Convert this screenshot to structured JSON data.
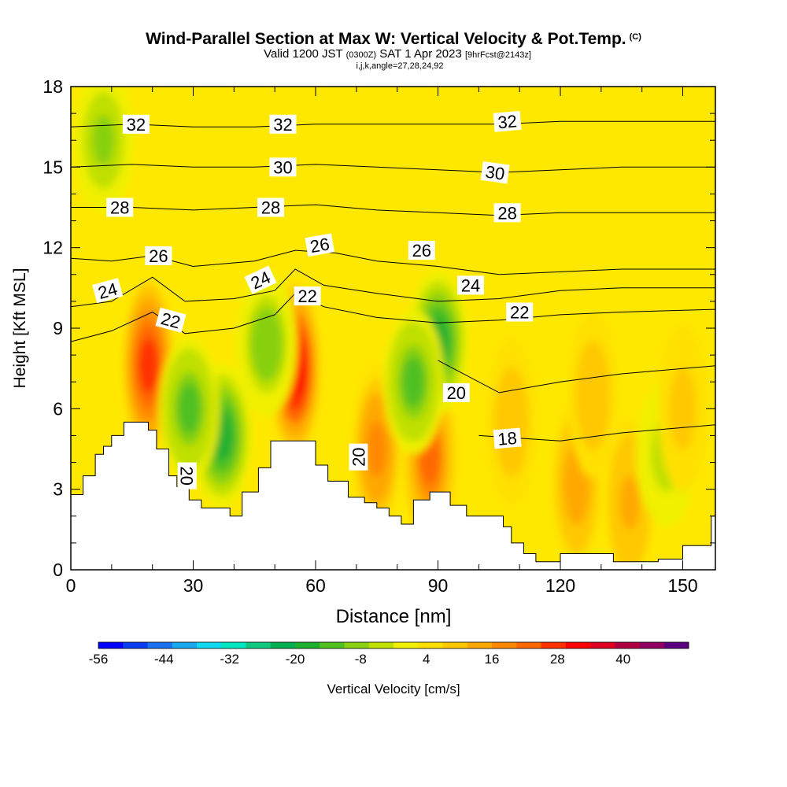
{
  "title": {
    "main": "Wind-Parallel Section at Max W: Vertical Velocity & Pot.Temp.",
    "copyright": "(C)",
    "valid_prefix": "Valid 1200 JST",
    "valid_utc": "(0300Z)",
    "valid_date": "SAT 1 Apr 2023",
    "forecast": "[9hrFcst@2143z]",
    "indices": "i,j,k,angle=27,28,24,92"
  },
  "chart_data": {
    "type": "heatmap",
    "xlabel": "Distance [nm]",
    "ylabel": "Height [Kft MSL]",
    "xlim": [
      0,
      158
    ],
    "ylim": [
      0,
      18
    ],
    "xticks": [
      0,
      30,
      60,
      90,
      120,
      150
    ],
    "yticks": [
      0,
      3,
      6,
      9,
      12,
      15,
      18
    ],
    "colorbar": {
      "label": "Vertical Velocity [cm/s]",
      "tick_labels": [
        "-56",
        "-44",
        "-32",
        "-20",
        "-8",
        "4",
        "16",
        "28",
        "40"
      ],
      "min": -56,
      "max": 52,
      "colors": [
        "#0000ff",
        "#0a3cf0",
        "#1a70f0",
        "#18a8f0",
        "#10d8f0",
        "#00e8c0",
        "#10c880",
        "#00b050",
        "#20b030",
        "#50c020",
        "#88d010",
        "#c0e000",
        "#f0f000",
        "#ffe000",
        "#ffc800",
        "#ffa800",
        "#ff8800",
        "#ff6800",
        "#ff3000",
        "#ff0000",
        "#e00020",
        "#b00040",
        "#900060",
        "#5a0080"
      ]
    },
    "terrain_profile": {
      "x": [
        0,
        3,
        3,
        6,
        6,
        8,
        8,
        10,
        10,
        13,
        13,
        19,
        19,
        21,
        21,
        24,
        24,
        26,
        26,
        29,
        29,
        32,
        32,
        39,
        39,
        42,
        42,
        46,
        46,
        49,
        49,
        60,
        60,
        63,
        63,
        68,
        68,
        72,
        72,
        75,
        75,
        78,
        78,
        81,
        81,
        84,
        84,
        88,
        88,
        93,
        93,
        97,
        97,
        106,
        106,
        108,
        108,
        111,
        111,
        114,
        114,
        120,
        120,
        133,
        133,
        144,
        144,
        150,
        150,
        157,
        157,
        158
      ],
      "height": [
        2.8,
        2.8,
        3.5,
        3.5,
        4.3,
        4.3,
        4.6,
        4.6,
        5.0,
        5.0,
        5.5,
        5.5,
        5.2,
        5.2,
        4.5,
        4.5,
        3.5,
        3.5,
        3.1,
        3.1,
        2.6,
        2.6,
        2.3,
        2.3,
        2.0,
        2.0,
        2.9,
        2.9,
        3.8,
        3.8,
        4.8,
        4.8,
        3.9,
        3.9,
        3.3,
        3.3,
        2.7,
        2.7,
        2.5,
        2.5,
        2.3,
        2.3,
        2.0,
        2.0,
        1.7,
        1.7,
        2.6,
        2.6,
        2.9,
        2.9,
        2.4,
        2.4,
        2.0,
        2.0,
        1.6,
        1.6,
        1.0,
        1.0,
        0.6,
        0.6,
        0.3,
        0.3,
        0.6,
        0.6,
        0.3,
        0.3,
        0.4,
        0.4,
        0.9,
        0.9,
        2.0,
        2.0
      ]
    },
    "velocity_features": [
      {
        "x": 19,
        "y": 7.6,
        "w": 29
      },
      {
        "x": 55,
        "y": 7.5,
        "w": 32
      },
      {
        "x": 75,
        "y": 4.5,
        "w": 18
      },
      {
        "x": 88,
        "y": 4.2,
        "w": 22
      },
      {
        "x": 124,
        "y": 3.2,
        "w": 14
      },
      {
        "x": 137,
        "y": 2.5,
        "w": 12
      },
      {
        "x": 108,
        "y": 5.5,
        "w": 10
      },
      {
        "x": 90,
        "y": 8.5,
        "w": -18
      },
      {
        "x": 84,
        "y": 7.0,
        "w": -12
      },
      {
        "x": 37,
        "y": 5.0,
        "w": -16
      },
      {
        "x": 29,
        "y": 6.0,
        "w": -12
      },
      {
        "x": 48,
        "y": 8.4,
        "w": -10
      },
      {
        "x": 8,
        "y": 16.0,
        "w": -7
      },
      {
        "x": 146,
        "y": 4.3,
        "w": -6
      },
      {
        "x": 128,
        "y": 6.5,
        "w": 10
      },
      {
        "x": 150,
        "y": 6.0,
        "w": 8
      }
    ],
    "isentropes": [
      {
        "label": "32",
        "x": [
          0,
          15,
          30,
          45,
          60,
          75,
          90,
          105,
          120,
          135,
          158
        ],
        "y": [
          16.5,
          16.6,
          16.5,
          16.5,
          16.6,
          16.6,
          16.6,
          16.6,
          16.7,
          16.7,
          16.7
        ]
      },
      {
        "label": "30",
        "x": [
          0,
          15,
          30,
          45,
          60,
          75,
          90,
          105,
          120,
          135,
          158
        ],
        "y": [
          15.0,
          15.1,
          15.0,
          15.0,
          15.1,
          15.0,
          14.9,
          14.8,
          14.9,
          15.0,
          15.0
        ]
      },
      {
        "label": "28",
        "x": [
          0,
          15,
          30,
          45,
          60,
          75,
          90,
          105,
          120,
          135,
          158
        ],
        "y": [
          13.5,
          13.5,
          13.4,
          13.5,
          13.6,
          13.4,
          13.3,
          13.2,
          13.3,
          13.3,
          13.3
        ]
      },
      {
        "label": "26",
        "x": [
          0,
          10,
          20,
          30,
          45,
          55,
          65,
          75,
          90,
          105,
          120,
          135,
          158
        ],
        "y": [
          11.6,
          11.5,
          11.7,
          11.3,
          11.5,
          11.9,
          11.8,
          11.5,
          11.3,
          11.0,
          11.1,
          11.2,
          11.2
        ]
      },
      {
        "label": "24",
        "x": [
          0,
          10,
          20,
          28,
          40,
          50,
          55,
          62,
          75,
          90,
          105,
          120,
          135,
          158
        ],
        "y": [
          9.8,
          10.0,
          10.9,
          10.0,
          10.1,
          10.4,
          11.2,
          10.6,
          10.3,
          10.0,
          10.1,
          10.4,
          10.5,
          10.5
        ]
      },
      {
        "label": "22",
        "x": [
          0,
          10,
          20,
          28,
          40,
          50,
          55,
          62,
          75,
          90,
          105,
          120,
          135,
          158
        ],
        "y": [
          8.5,
          8.9,
          9.6,
          8.8,
          9.0,
          9.5,
          10.3,
          9.8,
          9.4,
          9.2,
          9.3,
          9.5,
          9.6,
          9.7
        ]
      },
      {
        "label": "20",
        "x": [
          90,
          105,
          120,
          135,
          158
        ],
        "y": [
          7.8,
          6.6,
          7.0,
          7.3,
          7.6
        ]
      },
      {
        "label": "18",
        "x": [
          100,
          120,
          135,
          158
        ],
        "y": [
          5.0,
          4.8,
          5.1,
          5.4
        ]
      }
    ],
    "contour_labels": [
      {
        "text": "32",
        "x": 16,
        "y": 16.6,
        "angle": 0
      },
      {
        "text": "32",
        "x": 52,
        "y": 16.6,
        "angle": 0
      },
      {
        "text": "32",
        "x": 107,
        "y": 16.7,
        "angle": -5
      },
      {
        "text": "30",
        "x": 52,
        "y": 15.0,
        "angle": 0
      },
      {
        "text": "30",
        "x": 104,
        "y": 14.8,
        "angle": 8
      },
      {
        "text": "28",
        "x": 12,
        "y": 13.5,
        "angle": 0
      },
      {
        "text": "28",
        "x": 49,
        "y": 13.5,
        "angle": 0
      },
      {
        "text": "28",
        "x": 107,
        "y": 13.3,
        "angle": 0
      },
      {
        "text": "26",
        "x": 21.5,
        "y": 11.7,
        "angle": 0
      },
      {
        "text": "26",
        "x": 61,
        "y": 12.1,
        "angle": -10
      },
      {
        "text": "26",
        "x": 86,
        "y": 11.9,
        "angle": 0
      },
      {
        "text": "24",
        "x": 9,
        "y": 10.4,
        "angle": -15
      },
      {
        "text": "24",
        "x": 46.5,
        "y": 10.8,
        "angle": -25
      },
      {
        "text": "24",
        "x": 98,
        "y": 10.6,
        "angle": 0
      },
      {
        "text": "22",
        "x": 24.5,
        "y": 9.3,
        "angle": 15
      },
      {
        "text": "22",
        "x": 58,
        "y": 10.2,
        "angle": 0
      },
      {
        "text": "22",
        "x": 110,
        "y": 9.6,
        "angle": 0
      },
      {
        "text": "20",
        "x": 28.5,
        "y": 3.5,
        "angle": 90
      },
      {
        "text": "20",
        "x": 70.5,
        "y": 4.2,
        "angle": -90
      },
      {
        "text": "20",
        "x": 94.5,
        "y": 6.6,
        "angle": 0
      },
      {
        "text": "18",
        "x": 107,
        "y": 4.9,
        "angle": -5
      }
    ]
  }
}
